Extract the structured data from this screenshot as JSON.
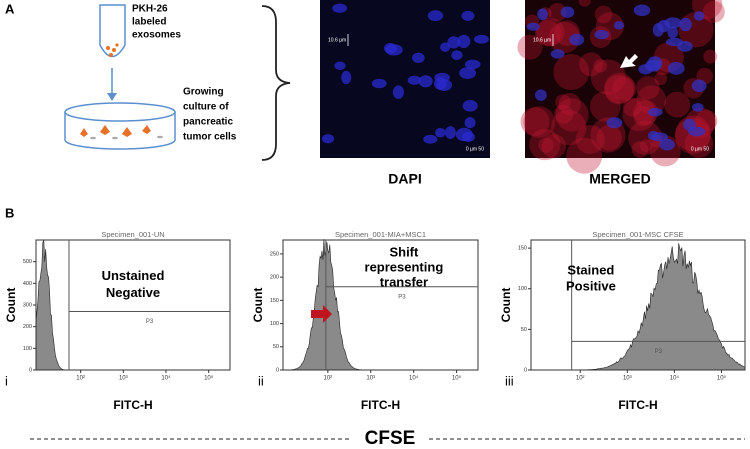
{
  "panel_a": {
    "label": "A",
    "tube_label": [
      "PKH-26",
      "labeled",
      "exosomes"
    ],
    "dish_label": [
      "Growing",
      "culture of",
      "pancreatic",
      "tumor cells"
    ],
    "images": [
      {
        "caption": "DAPI",
        "scale": "10.6 µm",
        "scale_bar": "0    µm    50"
      },
      {
        "caption": "MERGED",
        "scale": "10.6 µm",
        "scale_bar": "0    µm    50"
      }
    ]
  },
  "panel_b": {
    "label": "B",
    "plots": [
      {
        "numeral": "i",
        "title": "Specimen_001-UN",
        "annotation": [
          "Unstained",
          "Negative"
        ],
        "gate": "P3",
        "xlabel": "FITC-H",
        "ylabel": "Count",
        "ylim": [
          0,
          600
        ],
        "yticks": [
          0,
          100,
          200,
          300,
          400,
          500
        ],
        "xticks": [
          "10²",
          "10³",
          "10⁴",
          "10⁵"
        ]
      },
      {
        "numeral": "ii",
        "title": "Specimen_001-MIA+MSC1",
        "annotation": [
          "Shift",
          "representing",
          "transfer"
        ],
        "gate": "P3",
        "xlabel": "FITC-H",
        "ylabel": "Count",
        "ylim": [
          0,
          280
        ],
        "yticks": [
          0,
          50,
          100,
          150,
          200,
          250
        ],
        "xticks": [
          "10²",
          "10³",
          "10⁴",
          "10⁵"
        ]
      },
      {
        "numeral": "iii",
        "title": "Specimen_001-MSC CFSE",
        "annotation": [
          "Stained",
          "Positive"
        ],
        "gate": "P3",
        "xlabel": "FITC-H",
        "ylabel": "Count",
        "ylim": [
          0,
          160
        ],
        "yticks": [
          0,
          50,
          100,
          150
        ],
        "xticks": [
          "10²",
          "10³",
          "10⁴",
          "10⁵"
        ]
      }
    ],
    "footer": "CFSE"
  }
}
